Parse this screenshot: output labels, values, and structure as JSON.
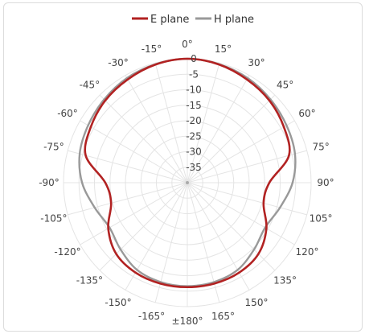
{
  "chart_data": {
    "type": "polar-line",
    "angle_unit": "degrees",
    "angle_labels": [
      "0°",
      "15°",
      "30°",
      "45°",
      "60°",
      "75°",
      "90°",
      "105°",
      "120°",
      "135°",
      "150°",
      "165°",
      "±180°",
      "-165°",
      "-150°",
      "-135°",
      "-120°",
      "-105°",
      "-90°",
      "-75°",
      "-60°",
      "-45°",
      "-30°",
      "-15°"
    ],
    "radial_axis": {
      "range": [
        -40,
        0
      ],
      "tick_values": [
        0,
        -5,
        -10,
        -15,
        -20,
        -25,
        -30,
        -35
      ],
      "tick_labels": [
        "0",
        "-5",
        "-10",
        "-15",
        "-20",
        "-25",
        "-30",
        "-35"
      ],
      "unit": "dB"
    },
    "grid": true,
    "legend": {
      "position": "top-center"
    },
    "series": [
      {
        "name": "E plane",
        "color": "#b22222",
        "angles": [
          0,
          15,
          30,
          45,
          60,
          75,
          90,
          105,
          120,
          135,
          150,
          165,
          180,
          -165,
          -150,
          -135,
          -120,
          -105,
          -90,
          -75,
          -60,
          -45,
          -30,
          -15
        ],
        "values": [
          0,
          -0.5,
          -1.5,
          -2.5,
          -4,
          -6,
          -13.5,
          -14.5,
          -10.5,
          -7.5,
          -6.5,
          -6.3,
          -6.3,
          -6.3,
          -6.5,
          -7.5,
          -10.5,
          -14.5,
          -13.5,
          -6,
          -4,
          -2.5,
          -1.5,
          -0.5
        ]
      },
      {
        "name": "H plane",
        "color": "#999999",
        "angles": [
          0,
          15,
          30,
          45,
          60,
          75,
          90,
          105,
          120,
          135,
          150,
          165,
          180,
          -165,
          -150,
          -135,
          -120,
          -105,
          -90,
          -75,
          -60,
          -45,
          -30,
          -15
        ],
        "values": [
          0,
          -0.4,
          -1,
          -2,
          -3,
          -4,
          -6,
          -9,
          -11,
          -9.5,
          -7.5,
          -6.8,
          -6.6,
          -6.8,
          -7.5,
          -9.5,
          -11,
          -9,
          -6,
          -4,
          -3,
          -2,
          -1,
          -0.4
        ]
      }
    ]
  }
}
